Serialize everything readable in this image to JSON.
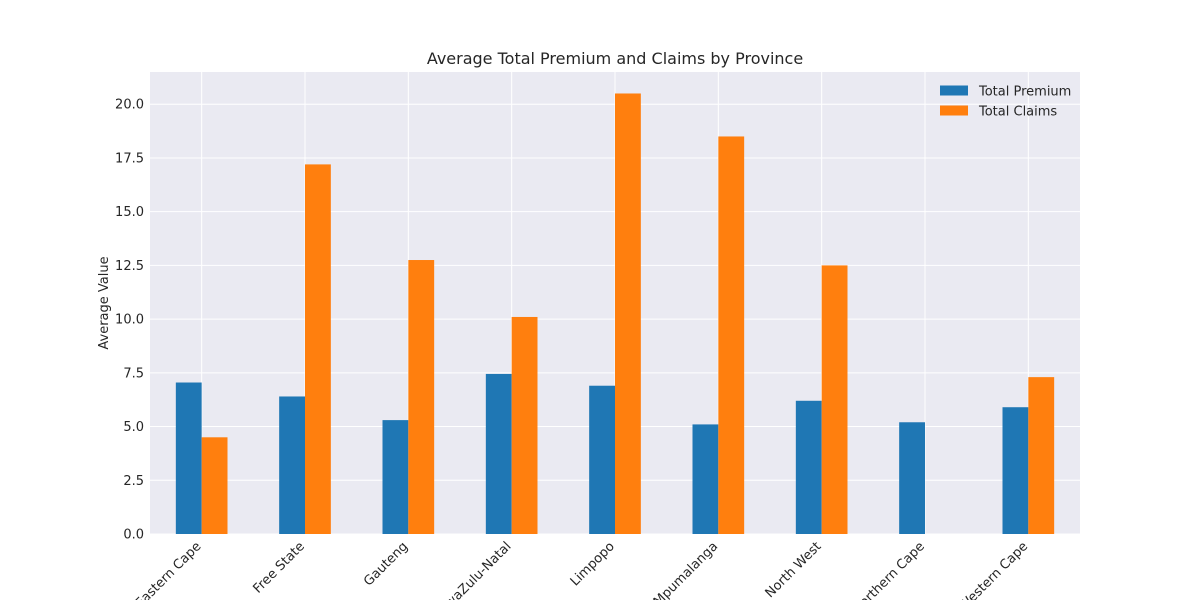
{
  "chart_data": {
    "type": "bar",
    "title": "Average Total Premium and Claims by Province",
    "xlabel": "",
    "ylabel": "Average Value",
    "categories": [
      "Eastern Cape",
      "Free State",
      "Gauteng",
      "KwaZulu-Natal",
      "Limpopo",
      "Mpumalanga",
      "North West",
      "Northern Cape",
      "Western Cape"
    ],
    "series": [
      {
        "name": "Total Premium",
        "color": "#1f77b4",
        "values": [
          7.05,
          6.4,
          5.3,
          7.45,
          6.9,
          5.1,
          6.2,
          5.2,
          5.9
        ]
      },
      {
        "name": "Total Claims",
        "color": "#ff7f0e",
        "values": [
          4.5,
          17.2,
          12.75,
          10.1,
          20.5,
          18.5,
          12.5,
          0,
          7.3
        ]
      }
    ],
    "ylim": [
      0,
      21.5
    ],
    "yticks": [
      0.0,
      2.5,
      5.0,
      7.5,
      10.0,
      12.5,
      15.0,
      17.5,
      20.0
    ],
    "ytick_labels": [
      "0.0",
      "2.5",
      "5.0",
      "7.5",
      "10.0",
      "12.5",
      "15.0",
      "17.5",
      "20.0"
    ],
    "grid": true,
    "legend_position": "top-right",
    "background_color": "#eaeaf2"
  }
}
